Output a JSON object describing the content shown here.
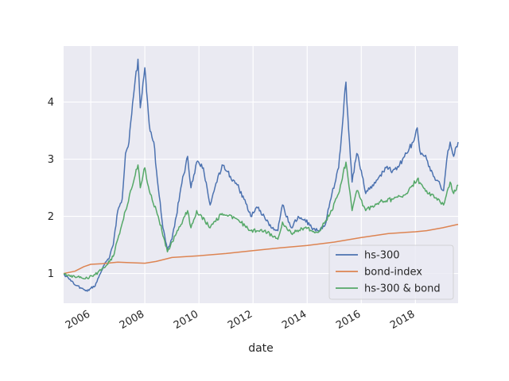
{
  "chart_data": {
    "type": "line",
    "xlabel": "date",
    "ylabel": "",
    "title": "",
    "x_range": [
      "2004-12-31",
      "2019-07-31"
    ],
    "ylim": [
      0.48,
      4.98
    ],
    "x_ticks": [
      "2006",
      "2008",
      "2010",
      "2012",
      "2014",
      "2016",
      "2018"
    ],
    "y_ticks": [
      "1",
      "2",
      "3",
      "4"
    ],
    "grid": true,
    "legend_position": "lower-right",
    "colors": {
      "background": "#eaeaf2",
      "grid": "#ffffff"
    },
    "series": [
      {
        "name": "hs-300",
        "color": "#4c72b0",
        "points": [
          [
            "2004-12-31",
            0.98
          ],
          [
            "2005-03-01",
            0.93
          ],
          [
            "2005-06-01",
            0.8
          ],
          [
            "2005-09-01",
            0.74
          ],
          [
            "2005-11-15",
            0.69
          ],
          [
            "2006-01-01",
            0.74
          ],
          [
            "2006-03-01",
            0.78
          ],
          [
            "2006-05-01",
            0.98
          ],
          [
            "2006-07-01",
            1.15
          ],
          [
            "2006-09-01",
            1.25
          ],
          [
            "2006-11-01",
            1.5
          ],
          [
            "2007-01-01",
            2.1
          ],
          [
            "2007-03-01",
            2.3
          ],
          [
            "2007-04-15",
            3.1
          ],
          [
            "2007-06-01",
            3.3
          ],
          [
            "2007-08-01",
            4.1
          ],
          [
            "2007-10-01",
            4.75
          ],
          [
            "2007-11-01",
            3.9
          ],
          [
            "2008-01-01",
            4.6
          ],
          [
            "2008-03-01",
            3.6
          ],
          [
            "2008-05-01",
            3.3
          ],
          [
            "2008-07-01",
            2.5
          ],
          [
            "2008-09-01",
            1.8
          ],
          [
            "2008-11-01",
            1.4
          ],
          [
            "2009-01-01",
            1.6
          ],
          [
            "2009-03-01",
            2.0
          ],
          [
            "2009-05-01",
            2.5
          ],
          [
            "2009-08-01",
            3.05
          ],
          [
            "2009-09-15",
            2.5
          ],
          [
            "2009-12-01",
            2.95
          ],
          [
            "2010-03-01",
            2.85
          ],
          [
            "2010-06-01",
            2.2
          ],
          [
            "2010-09-01",
            2.6
          ],
          [
            "2010-11-10",
            2.9
          ],
          [
            "2011-03-01",
            2.7
          ],
          [
            "2011-06-01",
            2.55
          ],
          [
            "2011-09-01",
            2.3
          ],
          [
            "2011-12-01",
            2.0
          ],
          [
            "2012-03-01",
            2.15
          ],
          [
            "2012-06-01",
            2.0
          ],
          [
            "2012-09-01",
            1.8
          ],
          [
            "2012-12-01",
            1.75
          ],
          [
            "2013-02-01",
            2.2
          ],
          [
            "2013-06-01",
            1.8
          ],
          [
            "2013-09-01",
            2.0
          ],
          [
            "2013-12-01",
            1.95
          ],
          [
            "2014-03-01",
            1.8
          ],
          [
            "2014-06-01",
            1.75
          ],
          [
            "2014-09-01",
            1.85
          ],
          [
            "2014-12-01",
            2.4
          ],
          [
            "2015-03-01",
            2.85
          ],
          [
            "2015-06-08",
            4.35
          ],
          [
            "2015-07-15",
            3.5
          ],
          [
            "2015-08-30",
            2.6
          ],
          [
            "2015-11-01",
            3.1
          ],
          [
            "2016-01-01",
            2.8
          ],
          [
            "2016-03-01",
            2.4
          ],
          [
            "2016-06-01",
            2.55
          ],
          [
            "2016-09-01",
            2.7
          ],
          [
            "2016-12-01",
            2.85
          ],
          [
            "2017-03-01",
            2.8
          ],
          [
            "2017-06-01",
            2.9
          ],
          [
            "2017-09-01",
            3.1
          ],
          [
            "2017-12-01",
            3.3
          ],
          [
            "2018-01-25",
            3.55
          ],
          [
            "2018-03-01",
            3.15
          ],
          [
            "2018-06-01",
            3.0
          ],
          [
            "2018-09-01",
            2.7
          ],
          [
            "2018-12-01",
            2.55
          ],
          [
            "2019-01-15",
            2.45
          ],
          [
            "2019-03-01",
            3.0
          ],
          [
            "2019-04-15",
            3.3
          ],
          [
            "2019-06-01",
            3.05
          ],
          [
            "2019-07-31",
            3.3
          ]
        ]
      },
      {
        "name": "bond-index",
        "color": "#dd8452",
        "points": [
          [
            "2004-12-31",
            1.0
          ],
          [
            "2005-06-01",
            1.04
          ],
          [
            "2005-10-01",
            1.12
          ],
          [
            "2006-01-01",
            1.16
          ],
          [
            "2006-06-01",
            1.17
          ],
          [
            "2007-01-01",
            1.2
          ],
          [
            "2007-06-01",
            1.19
          ],
          [
            "2008-01-01",
            1.18
          ],
          [
            "2008-06-01",
            1.21
          ],
          [
            "2009-01-01",
            1.28
          ],
          [
            "2010-01-01",
            1.31
          ],
          [
            "2011-01-01",
            1.35
          ],
          [
            "2012-01-01",
            1.4
          ],
          [
            "2013-01-01",
            1.45
          ],
          [
            "2014-01-01",
            1.49
          ],
          [
            "2015-01-01",
            1.55
          ],
          [
            "2016-01-01",
            1.63
          ],
          [
            "2017-01-01",
            1.7
          ],
          [
            "2018-01-01",
            1.73
          ],
          [
            "2018-06-01",
            1.75
          ],
          [
            "2019-01-01",
            1.8
          ],
          [
            "2019-07-31",
            1.86
          ]
        ]
      },
      {
        "name": "hs-300 & bond",
        "color": "#55a868",
        "points": [
          [
            "2004-12-31",
            0.99
          ],
          [
            "2005-06-01",
            0.94
          ],
          [
            "2005-11-15",
            0.92
          ],
          [
            "2006-03-01",
            0.98
          ],
          [
            "2006-07-01",
            1.1
          ],
          [
            "2006-11-01",
            1.3
          ],
          [
            "2007-01-01",
            1.6
          ],
          [
            "2007-04-15",
            2.1
          ],
          [
            "2007-08-01",
            2.6
          ],
          [
            "2007-10-01",
            2.9
          ],
          [
            "2007-11-01",
            2.5
          ],
          [
            "2008-01-01",
            2.85
          ],
          [
            "2008-03-01",
            2.45
          ],
          [
            "2008-07-01",
            2.0
          ],
          [
            "2008-11-01",
            1.38
          ],
          [
            "2009-03-01",
            1.7
          ],
          [
            "2009-08-01",
            2.1
          ],
          [
            "2009-09-15",
            1.8
          ],
          [
            "2009-12-01",
            2.1
          ],
          [
            "2010-06-01",
            1.8
          ],
          [
            "2010-11-10",
            2.05
          ],
          [
            "2011-06-01",
            1.95
          ],
          [
            "2011-12-01",
            1.75
          ],
          [
            "2012-06-01",
            1.75
          ],
          [
            "2012-12-01",
            1.6
          ],
          [
            "2013-02-01",
            1.9
          ],
          [
            "2013-06-01",
            1.7
          ],
          [
            "2013-12-01",
            1.8
          ],
          [
            "2014-06-01",
            1.72
          ],
          [
            "2014-12-01",
            2.1
          ],
          [
            "2015-03-01",
            2.4
          ],
          [
            "2015-06-08",
            2.95
          ],
          [
            "2015-08-30",
            2.1
          ],
          [
            "2015-11-01",
            2.45
          ],
          [
            "2016-03-01",
            2.1
          ],
          [
            "2016-09-01",
            2.25
          ],
          [
            "2017-03-01",
            2.3
          ],
          [
            "2017-09-01",
            2.4
          ],
          [
            "2018-01-25",
            2.65
          ],
          [
            "2018-06-01",
            2.45
          ],
          [
            "2018-12-01",
            2.25
          ],
          [
            "2019-01-15",
            2.2
          ],
          [
            "2019-04-15",
            2.6
          ],
          [
            "2019-06-01",
            2.4
          ],
          [
            "2019-07-31",
            2.55
          ]
        ]
      }
    ]
  }
}
